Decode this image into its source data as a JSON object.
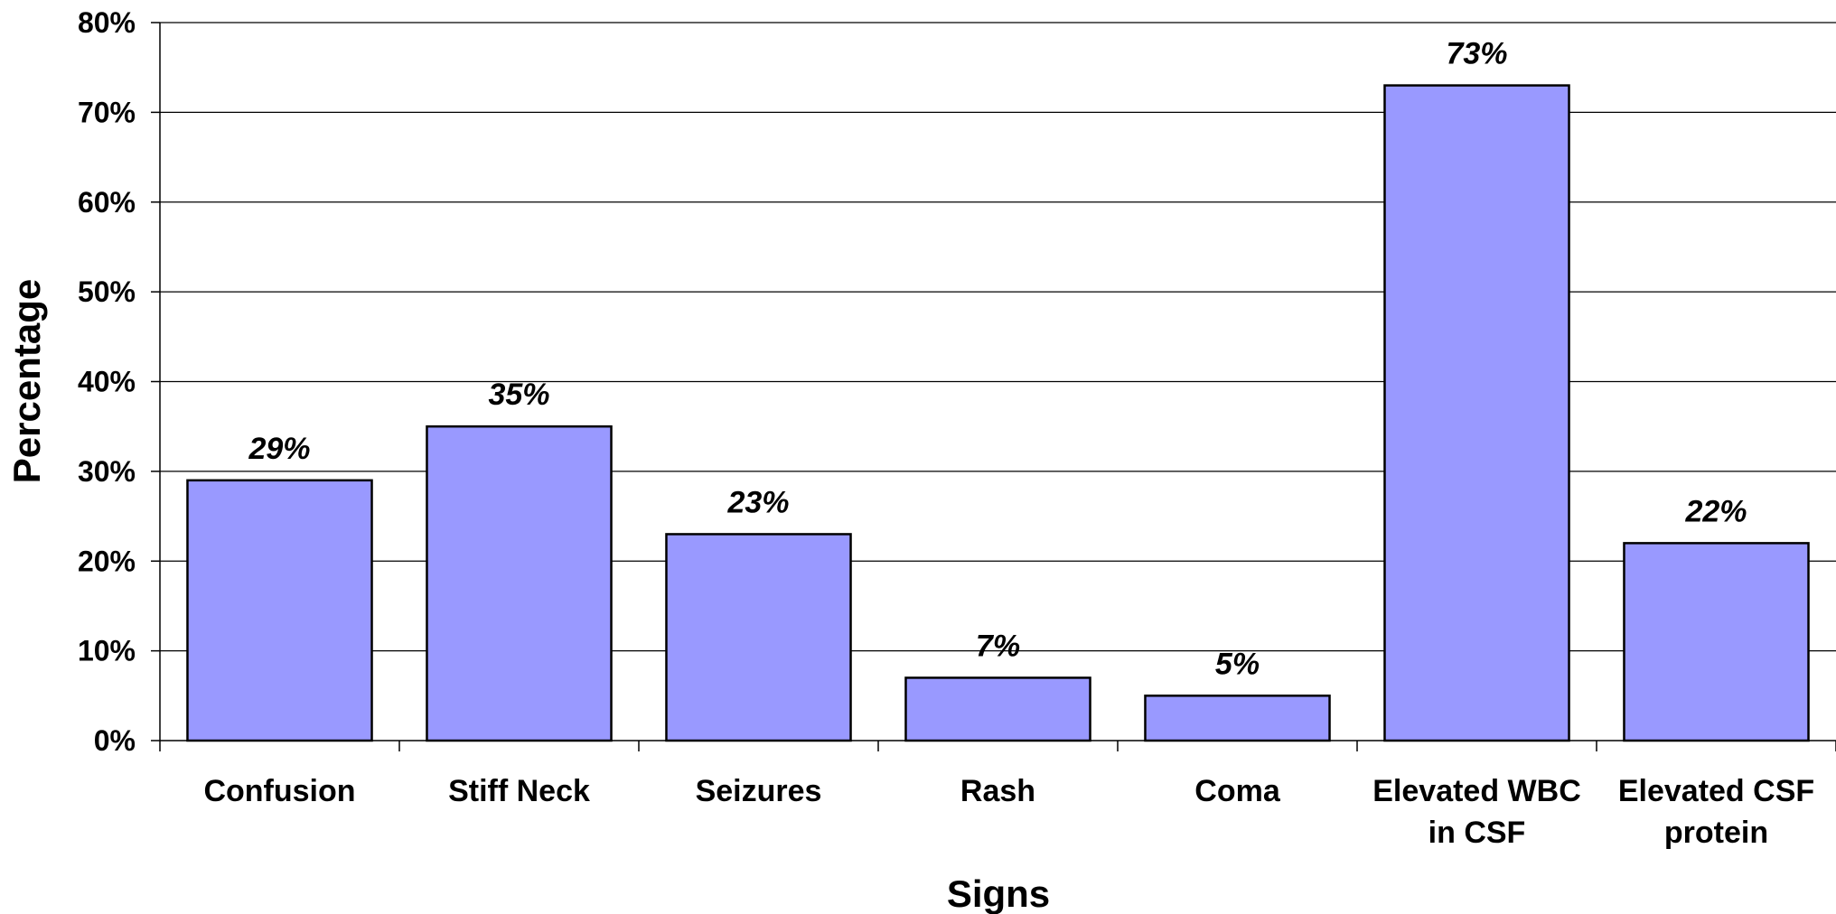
{
  "chart_data": {
    "type": "bar",
    "title": "",
    "xlabel": "Signs",
    "ylabel": "Percentage",
    "categories": [
      [
        "Confusion"
      ],
      [
        "Stiff Neck"
      ],
      [
        "Seizures"
      ],
      [
        "Rash"
      ],
      [
        "Coma"
      ],
      [
        "Elevated WBC",
        "in CSF"
      ],
      [
        "Elevated CSF",
        "protein"
      ]
    ],
    "values": [
      29,
      35,
      23,
      7,
      5,
      73,
      22
    ],
    "data_labels": [
      "29%",
      "35%",
      "23%",
      "7%",
      "5%",
      "73%",
      "22%"
    ],
    "ylim": [
      0,
      80
    ],
    "yticks": [
      0,
      10,
      20,
      30,
      40,
      50,
      60,
      70,
      80
    ],
    "ytick_labels": [
      "0%",
      "10%",
      "20%",
      "30%",
      "40%",
      "50%",
      "60%",
      "70%",
      "80%"
    ],
    "grid": true,
    "legend": "none",
    "colors": {
      "bar_fill": "#9999ff",
      "bar_stroke": "#000000",
      "grid": "#000000"
    }
  }
}
